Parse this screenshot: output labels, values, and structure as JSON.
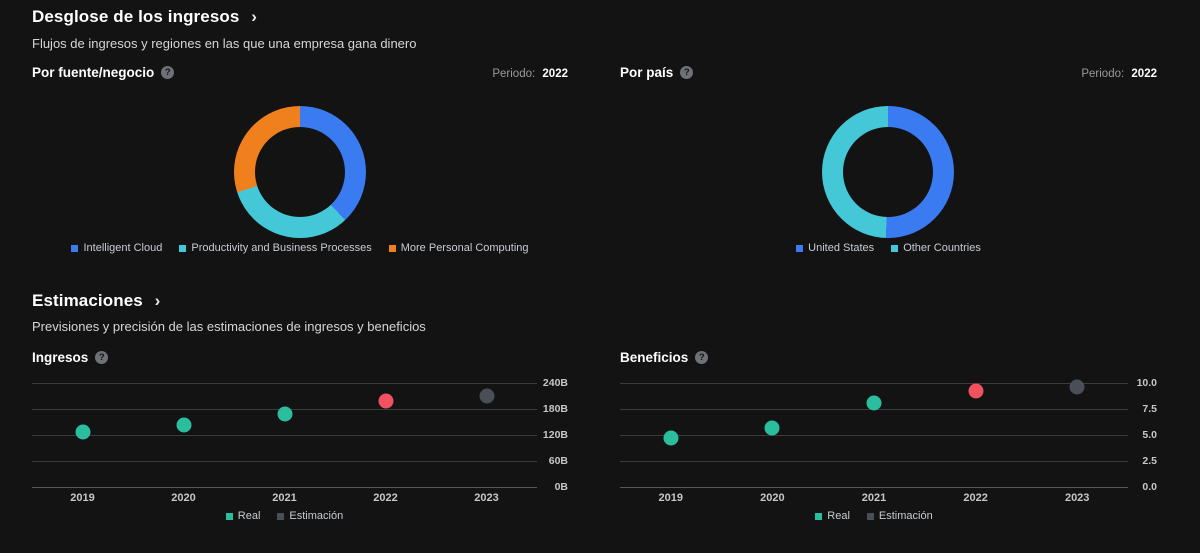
{
  "colors": {
    "background": "#131313",
    "blue": "#3a7bf2",
    "cyan": "#44c8d8",
    "orange": "#f0801e",
    "gridline": "#3b3b3b",
    "zero_line": "#575757",
    "point_kinds": {
      "real": "#2abd9e",
      "highlight": "#f2515f",
      "estimate": "#4a4e56"
    }
  },
  "icons": {
    "help_glyph": "?"
  },
  "page": {
    "revenue_breakdown": {
      "title": "Desglose de los ingresos",
      "chevron": "›",
      "subtitle": "Flujos de ingresos y regiones en las que una empresa gana dinero",
      "period_label": "Periodo:",
      "panels": [
        {
          "heading": "Por fuente/negocio",
          "period": "2022"
        },
        {
          "heading": "Por país",
          "period": "2022"
        }
      ]
    },
    "estimates": {
      "title": "Estimaciones",
      "chevron": "›",
      "subtitle": "Previsiones y precisión de las estimaciones de ingresos y beneficios",
      "panels": [
        {
          "heading": "Ingresos"
        },
        {
          "heading": "Beneficios"
        }
      ]
    }
  },
  "chart_data": [
    {
      "type": "pie",
      "dom_id": "donut-source",
      "title": "Por fuente/negocio",
      "period": "2022",
      "donut": true,
      "legend_position": "bottom",
      "slices": [
        {
          "label": "Intelligent Cloud",
          "pct": 38,
          "color": "#3a7bf2"
        },
        {
          "label": "Productivity and Business Processes",
          "pct": 32,
          "color": "#44c8d8"
        },
        {
          "label": "More Personal Computing",
          "pct": 30,
          "color": "#f0801e"
        }
      ]
    },
    {
      "type": "pie",
      "dom_id": "donut-country",
      "title": "Por país",
      "period": "2022",
      "donut": true,
      "legend_position": "bottom",
      "slices": [
        {
          "label": "United States",
          "pct": 50.5,
          "color": "#3a7bf2"
        },
        {
          "label": "Other Countries",
          "pct": 49.5,
          "color": "#44c8d8"
        }
      ]
    },
    {
      "type": "scatter",
      "dom_id": "scatter-ingresos",
      "title": "Ingresos",
      "ylabel": "",
      "unit": "B",
      "ylim": [
        0,
        240
      ],
      "grid": true,
      "legend_position": "bottom",
      "categories": [
        "2019",
        "2020",
        "2021",
        "2022",
        "2023"
      ],
      "yticks": [
        {
          "v": 240,
          "label": "240B"
        },
        {
          "v": 180,
          "label": "180B"
        },
        {
          "v": 120,
          "label": "120B"
        },
        {
          "v": 60,
          "label": "60B"
        },
        {
          "v": 0,
          "label": "0B"
        }
      ],
      "points": [
        {
          "x": "2019",
          "y": 126,
          "kind": "real"
        },
        {
          "x": "2020",
          "y": 143,
          "kind": "real"
        },
        {
          "x": "2021",
          "y": 168,
          "kind": "real"
        },
        {
          "x": "2022",
          "y": 199,
          "kind": "highlight"
        },
        {
          "x": "2023",
          "y": 211,
          "kind": "estimate"
        }
      ],
      "legend": [
        {
          "label": "Real",
          "kind": "real"
        },
        {
          "label": "Estimación",
          "kind": "estimate"
        }
      ]
    },
    {
      "type": "scatter",
      "dom_id": "scatter-beneficios",
      "title": "Beneficios",
      "ylabel": "",
      "unit": "",
      "ylim": [
        0,
        10
      ],
      "grid": true,
      "legend_position": "bottom",
      "categories": [
        "2019",
        "2020",
        "2021",
        "2022",
        "2023"
      ],
      "yticks": [
        {
          "v": 10,
          "label": "10.0"
        },
        {
          "v": 7.5,
          "label": "7.5"
        },
        {
          "v": 5,
          "label": "5.0"
        },
        {
          "v": 2.5,
          "label": "2.5"
        },
        {
          "v": 0,
          "label": "0.0"
        }
      ],
      "points": [
        {
          "x": "2019",
          "y": 4.7,
          "kind": "real"
        },
        {
          "x": "2020",
          "y": 5.7,
          "kind": "real"
        },
        {
          "x": "2021",
          "y": 8.1,
          "kind": "real"
        },
        {
          "x": "2022",
          "y": 9.2,
          "kind": "highlight"
        },
        {
          "x": "2023",
          "y": 9.6,
          "kind": "estimate"
        }
      ],
      "legend": [
        {
          "label": "Real",
          "kind": "real"
        },
        {
          "label": "Estimación",
          "kind": "estimate"
        }
      ]
    }
  ]
}
